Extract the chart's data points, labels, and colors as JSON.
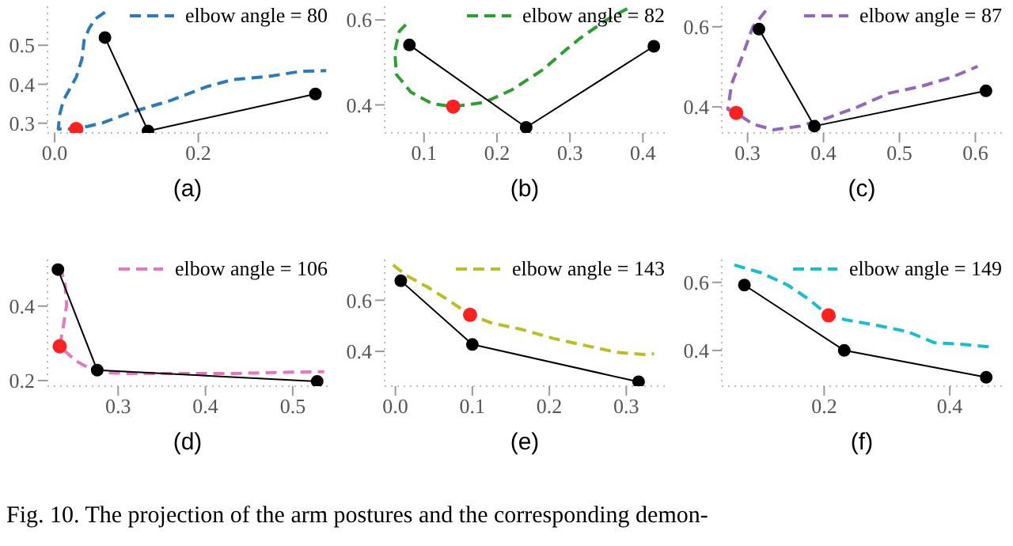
{
  "chart_data": [
    {
      "type": "line",
      "xlabel": "(a)",
      "xlim": [
        -0.01,
        0.38
      ],
      "ylim": [
        0.275,
        0.6
      ],
      "xticks": [
        {
          "value": 0,
          "label": "0.0"
        },
        0.2
      ],
      "yticks": [
        0.3,
        0.4,
        0.5
      ],
      "legend": "top right",
      "series": [
        {
          "name": "elbow angle = 80",
          "color": "#2b7bba",
          "line_style": "dashed",
          "marker": "none",
          "x": [
            0.07,
            0.056,
            0.048,
            0.041,
            0.038,
            0.03,
            0.012,
            0.007,
            0.005,
            0.03,
            0.067,
            0.11,
            0.161,
            0.212,
            0.248,
            0.298,
            0.342,
            0.378
          ],
          "values": [
            0.585,
            0.567,
            0.543,
            0.513,
            0.465,
            0.418,
            0.358,
            0.322,
            0.285,
            0.285,
            0.301,
            0.33,
            0.358,
            0.394,
            0.412,
            0.42,
            0.433,
            0.435
          ]
        },
        {
          "color": "#000000",
          "marker": "circle",
          "line_style": "solid",
          "x": [
            0.07,
            0.13,
            0.363
          ],
          "values": [
            0.52,
            0.28,
            0.375
          ]
        },
        {
          "type": "scatter",
          "color": "#ff2020",
          "marker": "circle",
          "x": [
            0.03
          ],
          "values": [
            0.285
          ]
        }
      ]
    },
    {
      "type": "line",
      "xlabel": "(b)",
      "xlim": [
        0.046,
        0.43
      ],
      "ylim": [
        0.334,
        0.632
      ],
      "xticks": [
        0.1,
        0.2,
        0.3,
        0.4
      ],
      "yticks": [
        0.4,
        0.6
      ],
      "legend": "top right",
      "series": [
        {
          "name": "elbow angle = 82",
          "color": "#2ca02c",
          "line_style": "dashed",
          "marker": "none",
          "x": [
            0.075,
            0.066,
            0.06,
            0.062,
            0.082,
            0.111,
            0.14,
            0.183,
            0.22,
            0.263,
            0.292,
            0.314,
            0.35,
            0.379
          ],
          "values": [
            0.589,
            0.573,
            0.526,
            0.472,
            0.43,
            0.403,
            0.396,
            0.406,
            0.435,
            0.483,
            0.526,
            0.557,
            0.6,
            0.627
          ]
        },
        {
          "color": "#000000",
          "marker": "circle",
          "line_style": "solid",
          "x": [
            0.08,
            0.24,
            0.415
          ],
          "values": [
            0.541,
            0.347,
            0.538
          ]
        },
        {
          "type": "scatter",
          "color": "#ff2020",
          "marker": "circle",
          "x": [
            0.14
          ],
          "values": [
            0.396
          ]
        }
      ]
    },
    {
      "type": "line",
      "xlabel": "(c)",
      "xlim": [
        0.266,
        0.635
      ],
      "ylim": [
        0.335,
        0.651
      ],
      "xticks": [
        0.3,
        0.4,
        0.5,
        0.6
      ],
      "yticks": [
        0.4,
        0.6
      ],
      "legend": "top right",
      "series": [
        {
          "name": "elbow angle = 87",
          "color": "#9467bd",
          "line_style": "dashed",
          "marker": "none",
          "x": [
            0.324,
            0.307,
            0.293,
            0.279,
            0.274,
            0.285,
            0.307,
            0.334,
            0.369,
            0.403,
            0.445,
            0.486,
            0.528,
            0.569,
            0.603
          ],
          "values": [
            0.64,
            0.6,
            0.526,
            0.457,
            0.394,
            0.385,
            0.357,
            0.343,
            0.352,
            0.371,
            0.4,
            0.434,
            0.451,
            0.474,
            0.501
          ]
        },
        {
          "color": "#000000",
          "marker": "circle",
          "line_style": "solid",
          "x": [
            0.315,
            0.388,
            0.614
          ],
          "values": [
            0.594,
            0.352,
            0.44
          ]
        },
        {
          "type": "scatter",
          "color": "#ff2020",
          "marker": "circle",
          "x": [
            0.285
          ],
          "values": [
            0.385
          ]
        }
      ]
    },
    {
      "type": "line",
      "xlabel": "(d)",
      "xlim": [
        0.219,
        0.54
      ],
      "ylim": [
        0.185,
        0.525
      ],
      "xticks": [
        0.3,
        0.4,
        0.5
      ],
      "yticks": [
        0.2,
        0.4
      ],
      "legend": "top right",
      "series": [
        {
          "name": "elbow angle = 106",
          "color": "#e377c2",
          "line_style": "dashed",
          "marker": "none",
          "x": [
            0.233,
            0.239,
            0.241,
            0.237,
            0.233,
            0.252,
            0.276,
            0.312,
            0.372,
            0.431,
            0.491,
            0.536
          ],
          "values": [
            0.507,
            0.464,
            0.404,
            0.343,
            0.292,
            0.252,
            0.222,
            0.219,
            0.219,
            0.219,
            0.222,
            0.224
          ]
        },
        {
          "color": "#000000",
          "marker": "circle",
          "line_style": "solid",
          "x": [
            0.231,
            0.276,
            0.528
          ],
          "values": [
            0.498,
            0.228,
            0.198
          ]
        },
        {
          "type": "scatter",
          "color": "#ff2020",
          "marker": "circle",
          "x": [
            0.233
          ],
          "values": [
            0.292
          ]
        }
      ]
    },
    {
      "type": "line",
      "xlabel": "(e)",
      "xlim": [
        -0.014,
        0.35
      ],
      "ylim": [
        0.264,
        0.759
      ],
      "xticks": [
        {
          "value": 0,
          "label": "0.0"
        },
        0.1,
        0.2,
        0.3
      ],
      "yticks": [
        0.4,
        0.6
      ],
      "legend": "top right",
      "series": [
        {
          "name": "elbow angle = 143",
          "color": "#bcbd22",
          "line_style": "dashed",
          "marker": "none",
          "x": [
            -0.003,
            0.014,
            0.041,
            0.069,
            0.097,
            0.124,
            0.165,
            0.206,
            0.247,
            0.288,
            0.323,
            0.336
          ],
          "values": [
            0.738,
            0.697,
            0.653,
            0.6,
            0.543,
            0.512,
            0.485,
            0.45,
            0.423,
            0.396,
            0.388,
            0.391
          ]
        },
        {
          "color": "#000000",
          "marker": "circle",
          "line_style": "solid",
          "x": [
            0.007,
            0.1,
            0.316
          ],
          "values": [
            0.676,
            0.427,
            0.281
          ]
        },
        {
          "type": "scatter",
          "color": "#ff2020",
          "marker": "circle",
          "x": [
            0.097
          ],
          "values": [
            0.543
          ]
        }
      ]
    },
    {
      "type": "line",
      "xlabel": "(f)",
      "xlim": [
        0.037,
        0.483
      ],
      "ylim": [
        0.295,
        0.667
      ],
      "xticks": [
        0.2,
        0.4
      ],
      "yticks": [
        0.4,
        0.6
      ],
      "legend": "top right",
      "annotations": [
        "Fig. 10.  The projection of the arm postures and the corresponding demon-"
      ],
      "series": [
        {
          "name": "elbow angle = 149",
          "color": "#17becf",
          "line_style": "dashed",
          "marker": "none",
          "x": [
            0.057,
            0.1,
            0.142,
            0.175,
            0.207,
            0.234,
            0.283,
            0.333,
            0.375,
            0.425,
            0.467
          ],
          "values": [
            0.651,
            0.628,
            0.592,
            0.551,
            0.503,
            0.49,
            0.474,
            0.455,
            0.423,
            0.417,
            0.41
          ]
        },
        {
          "color": "#000000",
          "marker": "circle",
          "line_style": "solid",
          "x": [
            0.073,
            0.232,
            0.458
          ],
          "values": [
            0.592,
            0.4,
            0.321
          ]
        },
        {
          "type": "scatter",
          "color": "#ff2020",
          "marker": "circle",
          "x": [
            0.207
          ],
          "values": [
            0.503
          ]
        }
      ]
    }
  ]
}
